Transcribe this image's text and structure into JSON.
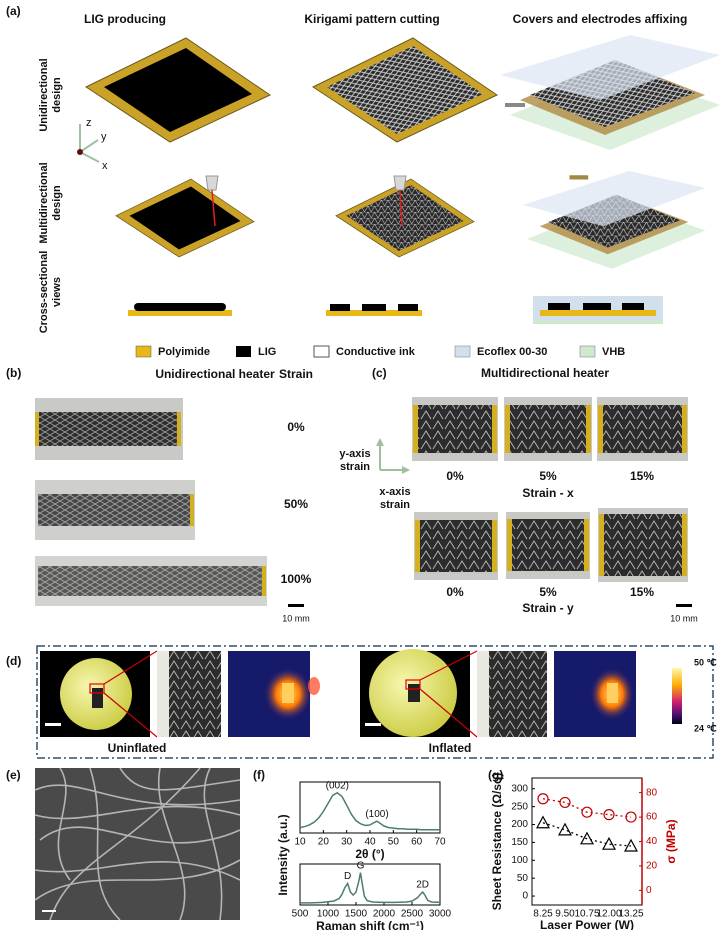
{
  "panel_a": {
    "label": "(a)",
    "columns": [
      "LIG producing",
      "Kirigami pattern cutting",
      "Covers and electrodes affixing"
    ],
    "rows": [
      [
        "Unidirectional",
        "design"
      ],
      [
        "Multidirectional",
        "design"
      ],
      [
        "Cross-sectional",
        "views"
      ]
    ],
    "axes": [
      "z",
      "y",
      "x"
    ],
    "legend": [
      "Polyimide",
      "LIG",
      "Conductive ink",
      "Ecoflex 00-30",
      "VHB"
    ]
  },
  "panel_b": {
    "label": "(b)",
    "title": "Unidirectional heater",
    "strain_header": "Strain",
    "strains": [
      "0%",
      "50%",
      "100%"
    ],
    "scale": "10 mm"
  },
  "panel_c": {
    "label": "(c)",
    "title": "Multidirectional heater",
    "axis_y": [
      "y-axis",
      "strain"
    ],
    "axis_x": [
      "x-axis",
      "strain"
    ],
    "row1": [
      "0%",
      "5%",
      "15%"
    ],
    "row1_caption": "Strain - x",
    "row2": [
      "0%",
      "5%",
      "15%"
    ],
    "row2_caption": "Strain - y",
    "scale": "10 mm"
  },
  "panel_d": {
    "label": "(d)",
    "captions": [
      "Uninflated",
      "Inflated"
    ],
    "colorbar": [
      "50 ℃",
      "24 ℃"
    ]
  },
  "panel_e": {
    "label": "(e)"
  },
  "chart_data": [
    {
      "type": "line",
      "label": "(f)",
      "ylabel": "Intensity (a.u.)",
      "xlabel": "2θ (°)",
      "color": "#4d7d6e",
      "x": [
        10,
        12,
        14,
        16,
        18,
        20,
        22,
        24,
        26,
        28,
        30,
        32,
        34,
        36,
        38,
        40,
        42,
        43,
        44,
        46,
        48,
        50,
        52,
        54,
        56,
        58,
        60,
        62,
        64,
        66,
        68,
        70
      ],
      "values": [
        0.2,
        0.22,
        0.25,
        0.3,
        0.38,
        0.5,
        0.65,
        0.8,
        0.85,
        0.78,
        0.62,
        0.45,
        0.33,
        0.27,
        0.24,
        0.25,
        0.3,
        0.32,
        0.29,
        0.23,
        0.2,
        0.19,
        0.18,
        0.18,
        0.17,
        0.17,
        0.17,
        0.16,
        0.16,
        0.16,
        0.16,
        0.16
      ],
      "xlim": [
        10,
        70
      ],
      "xticks": [
        10,
        20,
        30,
        40,
        50,
        60,
        70
      ],
      "ylim": [
        0.1,
        1.05
      ],
      "annotations": [
        {
          "text": "(002)",
          "x": 26,
          "y": 0.85
        },
        {
          "text": "(100)",
          "x": 43,
          "y": 0.32
        }
      ]
    },
    {
      "type": "line",
      "xlabel": "Raman shift (cm⁻¹)",
      "color": "#4d7d6e",
      "x": [
        500,
        700,
        900,
        1100,
        1200,
        1250,
        1300,
        1350,
        1400,
        1450,
        1500,
        1550,
        1580,
        1610,
        1650,
        1700,
        1800,
        2000,
        2200,
        2400,
        2500,
        2600,
        2650,
        2690,
        2730,
        2780,
        2850,
        3000
      ],
      "values": [
        0.1,
        0.1,
        0.11,
        0.14,
        0.2,
        0.3,
        0.45,
        0.55,
        0.35,
        0.28,
        0.35,
        0.6,
        0.8,
        0.55,
        0.25,
        0.15,
        0.12,
        0.11,
        0.11,
        0.12,
        0.14,
        0.22,
        0.3,
        0.35,
        0.28,
        0.16,
        0.12,
        0.11
      ],
      "xlim": [
        500,
        3000
      ],
      "xticks": [
        500,
        1000,
        1500,
        2000,
        2500,
        3000
      ],
      "ylim": [
        0.05,
        1.0
      ],
      "annotations": [
        {
          "text": "D",
          "x": 1350,
          "y": 0.55
        },
        {
          "text": "G",
          "x": 1580,
          "y": 0.8
        },
        {
          "text": "2D",
          "x": 2690,
          "y": 0.35
        }
      ]
    },
    {
      "type": "dual_line",
      "label": "(g)",
      "xlabel": "Laser Power (W)",
      "ylabel": "Sheet Resistance (Ω/sq)",
      "y2label": "σ (MPa)",
      "categories": [
        "8.25",
        "9.50",
        "10.75",
        "12.00",
        "13.25"
      ],
      "ylim": [
        -25,
        330
      ],
      "yticks": [
        0,
        50,
        100,
        150,
        200,
        250,
        300
      ],
      "y2lim": [
        -12,
        92
      ],
      "y2ticks": [
        0,
        20,
        40,
        60,
        80
      ],
      "y2color": "#c00000",
      "linestyle": "dotted",
      "series": [
        {
          "color": "#000000",
          "marker": "triangle",
          "values": [
            205,
            185,
            160,
            145,
            140
          ]
        },
        {
          "color": "#c00000",
          "marker": "circle",
          "axis": "y2",
          "values": [
            75,
            72,
            64,
            62,
            60
          ]
        }
      ]
    }
  ]
}
